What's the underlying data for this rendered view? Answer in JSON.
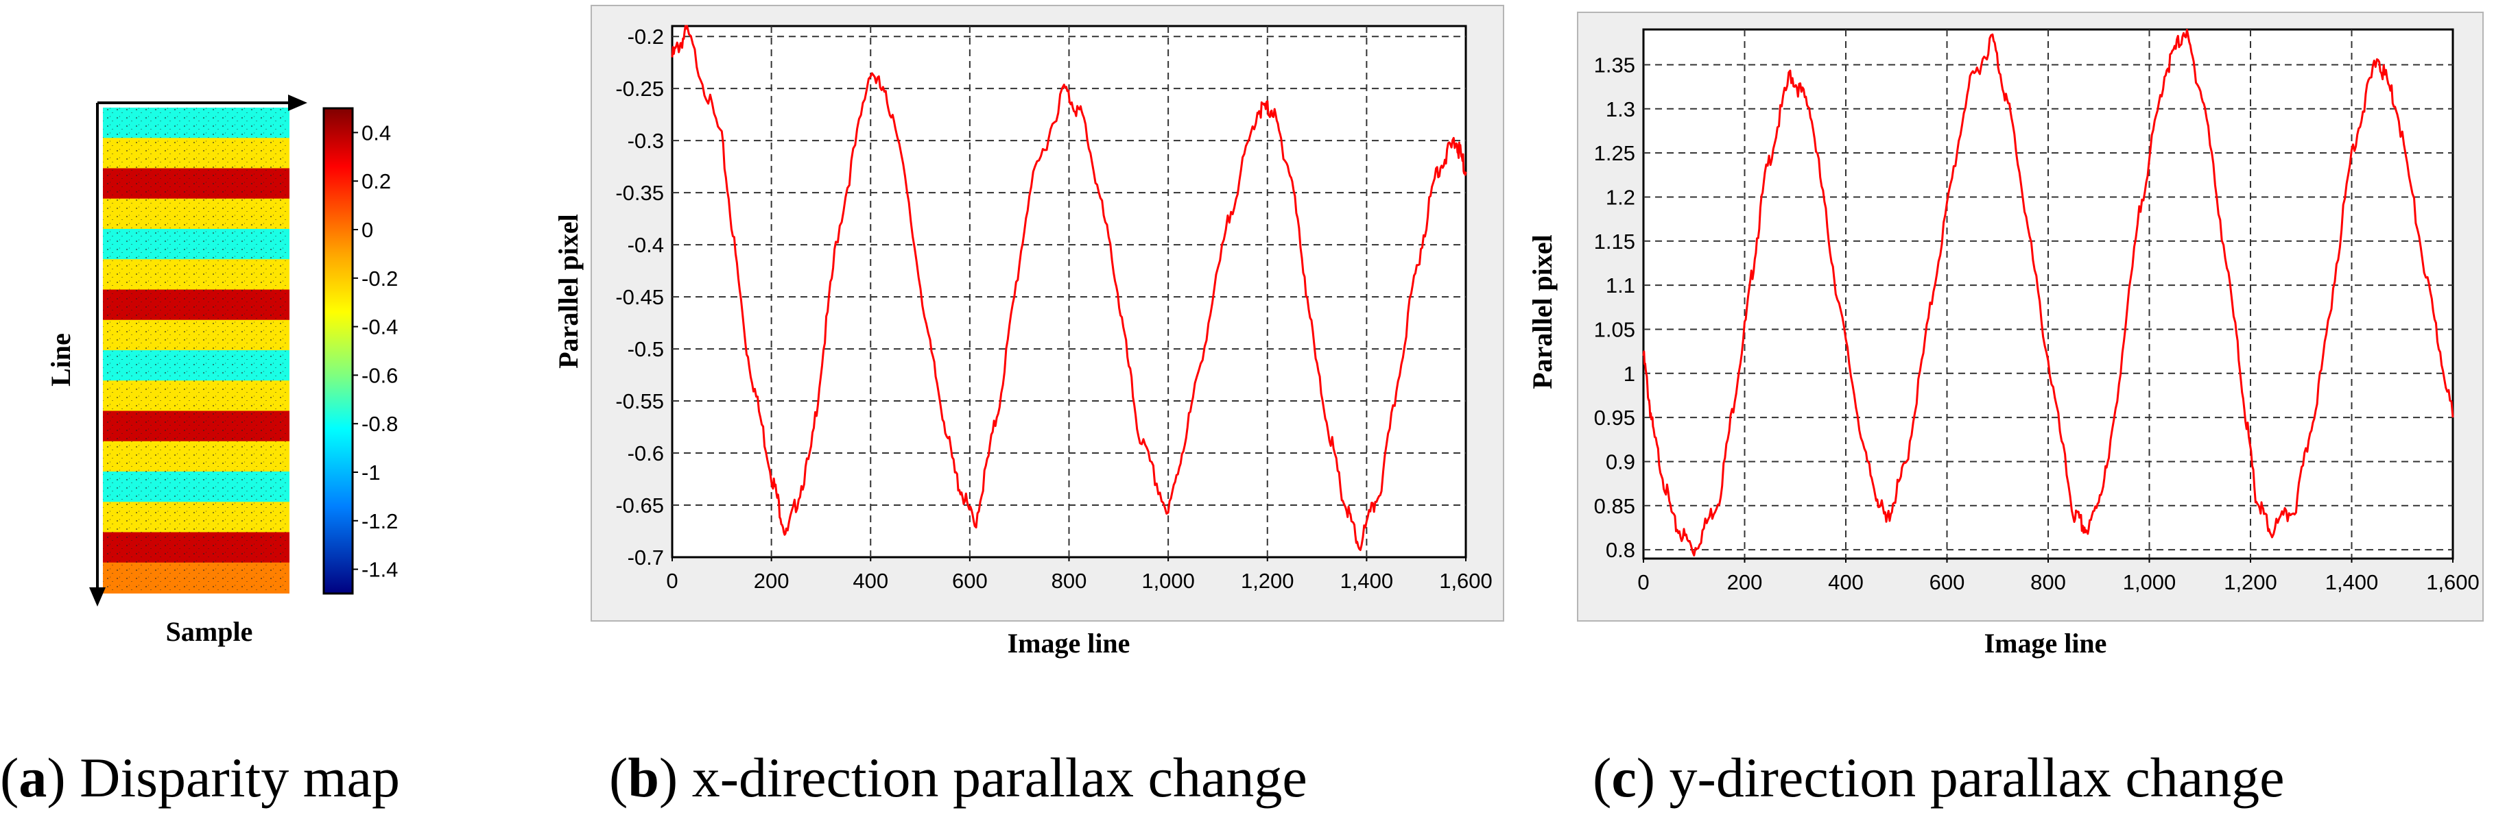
{
  "panel_a": {
    "colorbar_ticks": [
      "0.4",
      "0.2",
      "0",
      "-0.2",
      "-0.4",
      "-0.6",
      "-0.8",
      "-1",
      "-1.2",
      "-1.4"
    ],
    "xlabel": "Sample",
    "ylabel": "Line"
  },
  "captions": [
    {
      "letter": "a",
      "text": " Disparity map"
    },
    {
      "letter": "b",
      "text": " x-direction parallax change"
    },
    {
      "letter": "c",
      "text": " y-direction parallax change"
    }
  ],
  "chart_data": [
    {
      "id": "a",
      "type": "heatmap",
      "title": "Disparity map",
      "xlabel": "Sample",
      "ylabel": "Line",
      "colorbar_range": [
        -1.5,
        0.5
      ],
      "colorbar_ticks": [
        0.4,
        0.2,
        0,
        -0.2,
        -0.4,
        -0.6,
        -0.8,
        -1,
        -1.2,
        -1.4
      ],
      "band_values": [
        -0.7,
        -0.2,
        0.35,
        -0.2,
        -0.7,
        -0.2,
        0.35,
        -0.2,
        -0.7,
        -0.2,
        0.35,
        -0.2,
        -0.7,
        -0.2,
        0.35,
        0.0
      ]
    },
    {
      "id": "b",
      "type": "line",
      "title": "x-direction parallax change",
      "xlabel": "Image line",
      "ylabel": "Parallel pixel",
      "xlim": [
        0,
        1600
      ],
      "ylim": [
        -0.7,
        -0.19
      ],
      "xticks": [
        0,
        200,
        400,
        600,
        800,
        1000,
        1200,
        1400,
        1600
      ],
      "xtick_labels": [
        "0",
        "200",
        "400",
        "600",
        "800",
        "1,000",
        "1,200",
        "1,400",
        "1,600"
      ],
      "yticks": [
        -0.2,
        -0.25,
        -0.3,
        -0.35,
        -0.4,
        -0.45,
        -0.5,
        -0.55,
        -0.6,
        -0.65,
        -0.7
      ],
      "ytick_labels": [
        "-0.2",
        "-0.25",
        "-0.3",
        "-0.35",
        "-0.4",
        "-0.45",
        "-0.5",
        "-0.55",
        "-0.6",
        "-0.65",
        "-0.7"
      ],
      "grid": true,
      "series": [
        {
          "name": "x-direction parallax",
          "color": "#ff0000",
          "x": [
            0,
            30,
            100,
            150,
            200,
            230,
            280,
            330,
            400,
            450,
            520,
            570,
            610,
            660,
            720,
            790,
            830,
            890,
            940,
            1000,
            1050,
            1120,
            1180,
            1210,
            1250,
            1300,
            1350,
            1385,
            1430,
            1490,
            1540,
            1580,
            1600
          ],
          "y": [
            -0.22,
            -0.195,
            -0.3,
            -0.5,
            -0.62,
            -0.68,
            -0.6,
            -0.4,
            -0.23,
            -0.28,
            -0.5,
            -0.62,
            -0.67,
            -0.55,
            -0.35,
            -0.25,
            -0.28,
            -0.42,
            -0.58,
            -0.66,
            -0.55,
            -0.38,
            -0.27,
            -0.27,
            -0.34,
            -0.52,
            -0.64,
            -0.69,
            -0.63,
            -0.45,
            -0.33,
            -0.3,
            -0.33
          ]
        }
      ]
    },
    {
      "id": "c",
      "type": "line",
      "title": "y-direction parallax change",
      "xlabel": "Image line",
      "ylabel": "Parallel pixel",
      "xlim": [
        0,
        1600
      ],
      "ylim": [
        0.79,
        1.39
      ],
      "xticks": [
        0,
        200,
        400,
        600,
        800,
        1000,
        1200,
        1400,
        1600
      ],
      "xtick_labels": [
        "0",
        "200",
        "400",
        "600",
        "800",
        "1,000",
        "1,200",
        "1,400",
        "1,600"
      ],
      "yticks": [
        0.8,
        0.85,
        0.9,
        0.95,
        1.0,
        1.05,
        1.1,
        1.15,
        1.2,
        1.25,
        1.3,
        1.35
      ],
      "ytick_labels": [
        "0.8",
        "0.85",
        "0.9",
        "0.95",
        "1",
        "1.05",
        "1.1",
        "1.15",
        "1.2",
        "1.25",
        "1.3",
        "1.35"
      ],
      "grid": true,
      "series": [
        {
          "name": "y-direction parallax",
          "color": "#ff0000",
          "x": [
            0,
            20,
            60,
            100,
            150,
            200,
            240,
            290,
            330,
            380,
            440,
            480,
            520,
            580,
            640,
            690,
            730,
            790,
            850,
            880,
            920,
            980,
            1030,
            1070,
            1110,
            1170,
            1210,
            1240,
            1290,
            1340,
            1400,
            1450,
            1490,
            1550,
            1600
          ],
          "y": [
            1.02,
            0.93,
            0.83,
            0.8,
            0.86,
            1.05,
            1.22,
            1.34,
            1.3,
            1.1,
            0.9,
            0.83,
            0.9,
            1.12,
            1.32,
            1.38,
            1.28,
            1.05,
            0.84,
            0.82,
            0.9,
            1.18,
            1.34,
            1.39,
            1.3,
            1.05,
            0.86,
            0.82,
            0.85,
            1.0,
            1.25,
            1.36,
            1.3,
            1.1,
            0.95
          ]
        }
      ]
    }
  ]
}
